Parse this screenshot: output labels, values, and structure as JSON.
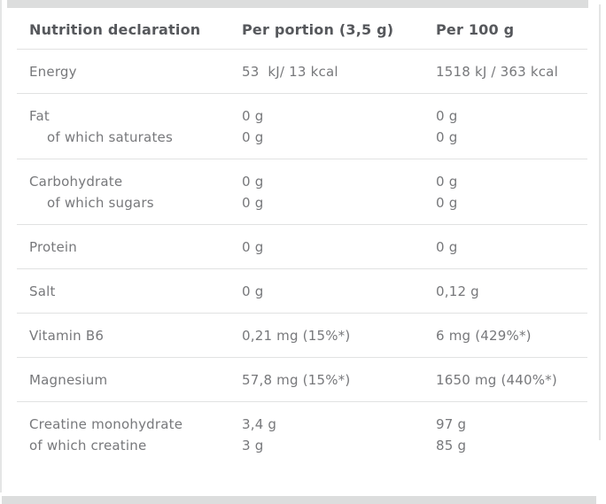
{
  "table": {
    "header": {
      "col1": "Nutrition declaration",
      "col2": "Per portion (3,5 g)",
      "col3": "Per 100 g"
    },
    "rows": [
      {
        "label": "Energy",
        "portion": "53  kJ/ 13 kcal",
        "per100": "1518 kJ / 363 kcal"
      },
      {
        "label": "Fat",
        "portion": "0 g",
        "per100": "0 g"
      },
      {
        "label": "of which saturates",
        "portion": "0 g",
        "per100": "0 g"
      },
      {
        "label": "Carbohydrate",
        "portion": "0 g",
        "per100": "0 g"
      },
      {
        "label": "of which sugars",
        "portion": "0 g",
        "per100": "0 g"
      },
      {
        "label": "Protein",
        "portion": "0 g",
        "per100": "0 g"
      },
      {
        "label": "Salt",
        "portion": "0 g",
        "per100": "0,12 g"
      },
      {
        "label": "Vitamin B6",
        "portion": "0,21 mg (15%*)",
        "per100": "6 mg (429%*)"
      },
      {
        "label": "Magnesium",
        "portion": "57,8 mg (15%*)",
        "per100": "1650 mg (440%*)"
      },
      {
        "label": "Creatine monohydrate",
        "portion": "3,4 g",
        "per100": "97 g"
      },
      {
        "label": "of which creatine",
        "portion": "3 g",
        "per100": "85 g"
      }
    ]
  },
  "colors": {
    "header_text": "#56585c",
    "body_text": "#77787b",
    "separator": "#e1e2e2",
    "divider_bar": "#dcdddd",
    "frame_edge": "#e4e5e5",
    "background": "#ffffff"
  }
}
